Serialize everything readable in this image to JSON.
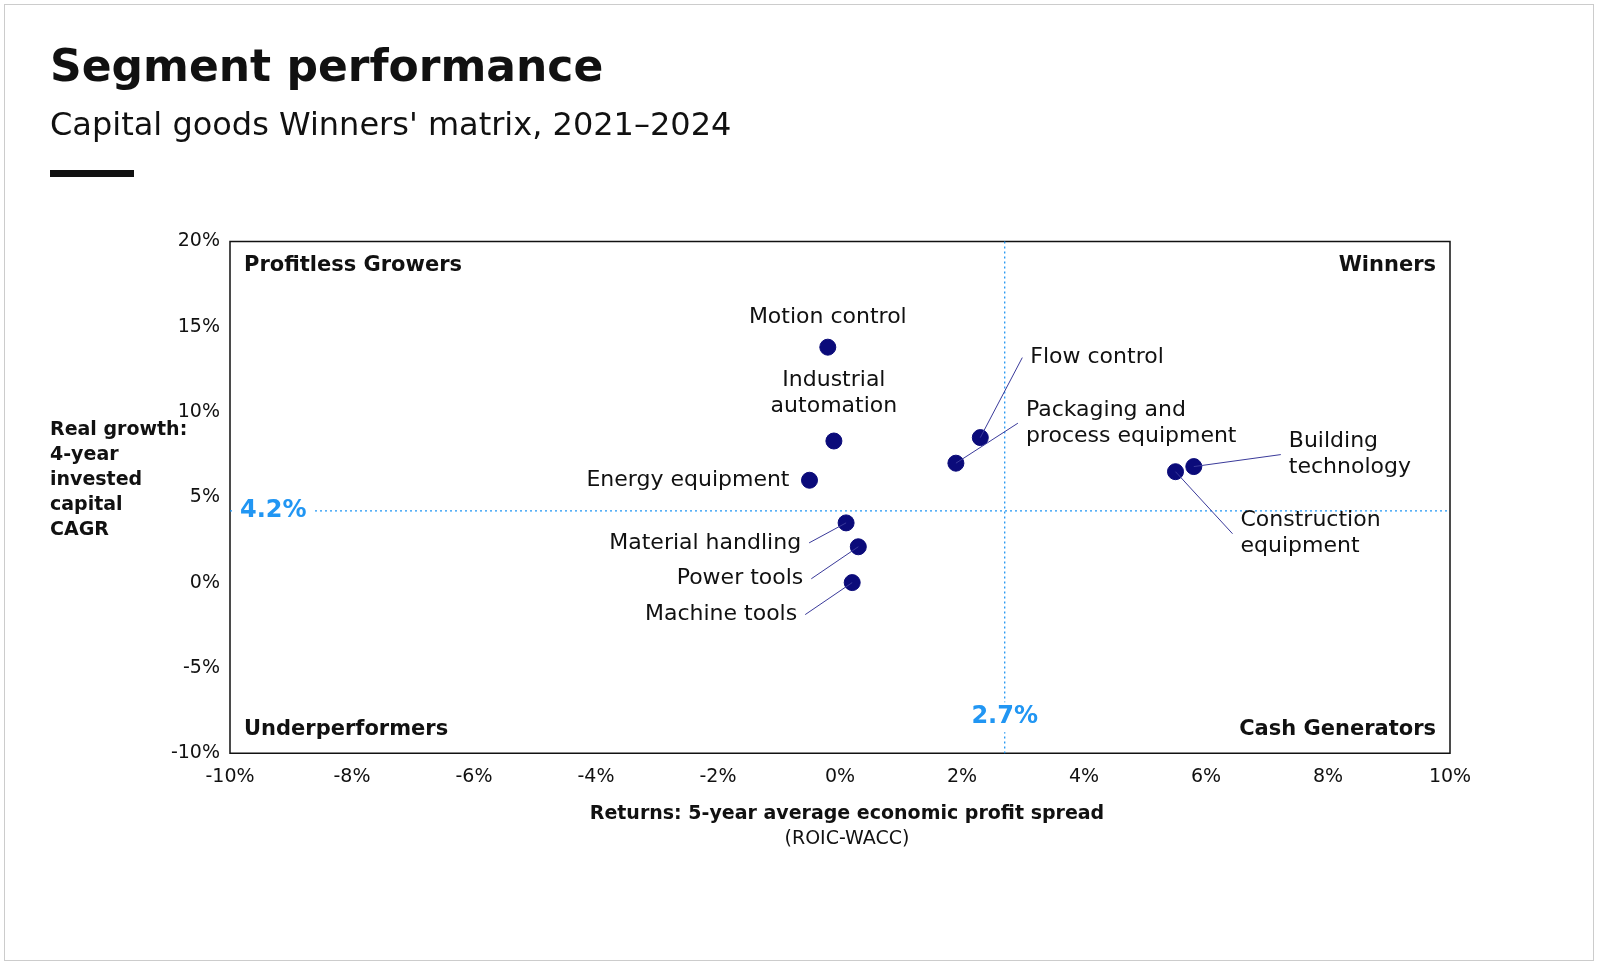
{
  "chart_data": {
    "type": "scatter",
    "title": "Segment performance",
    "subtitle": "Capital goods Winners' matrix, 2021–2024",
    "xlabel": "Returns: 5-year average economic profit spread\n(ROIC-WACC)",
    "ylabel": "Real growth:\n4-year\ninvested\ncapital\nCAGR",
    "series": [
      {
        "name": "Motion control",
        "color": "#0b0b7a",
        "x": [
          -0.2
        ],
        "values": [
          13.8
        ]
      },
      {
        "name": "Industrial\nautomation",
        "color": "#0b0b7a",
        "x": [
          -0.1
        ],
        "values": [
          8.3
        ]
      },
      {
        "name": "Energy equipment",
        "color": "#0b0b7a",
        "x": [
          -0.5
        ],
        "values": [
          6.0
        ]
      },
      {
        "name": "Material handling",
        "color": "#0b0b7a",
        "x": [
          0.1
        ],
        "values": [
          3.5
        ]
      },
      {
        "name": "Power tools",
        "color": "#0b0b7a",
        "x": [
          0.3
        ],
        "values": [
          2.1
        ]
      },
      {
        "name": "Machine tools",
        "color": "#0b0b7a",
        "x": [
          0.2
        ],
        "values": [
          0.0
        ]
      },
      {
        "name": "Flow control",
        "color": "#0b0b7a",
        "x": [
          2.3
        ],
        "values": [
          8.5
        ]
      },
      {
        "name": "Packaging and\nprocess equipment",
        "color": "#0b0b7a",
        "x": [
          1.9
        ],
        "values": [
          7.0
        ]
      },
      {
        "name": "Building\ntechnology",
        "color": "#0b0b7a",
        "x": [
          5.8
        ],
        "values": [
          6.8
        ]
      },
      {
        "name": "Construction\nequipment",
        "color": "#0b0b7a",
        "x": [
          5.5
        ],
        "values": [
          6.5
        ]
      }
    ],
    "marker": "circle",
    "legend": false,
    "grid": false,
    "xlim": [
      -10,
      10
    ],
    "xticks": [
      {
        "value": -10,
        "label": "-10%"
      },
      {
        "value": -8,
        "label": "-8%"
      },
      {
        "value": -6,
        "label": "-6%"
      },
      {
        "value": -4,
        "label": "-4%"
      },
      {
        "value": -2,
        "label": "-2%"
      },
      {
        "value": 0,
        "label": "0%"
      },
      {
        "value": 2,
        "label": "2%"
      },
      {
        "value": 4,
        "label": "4%"
      },
      {
        "value": 6,
        "label": "6%"
      },
      {
        "value": 8,
        "label": "8%"
      },
      {
        "value": 10,
        "label": "10%"
      }
    ],
    "ylim": [
      -10,
      20
    ],
    "yticks": [
      {
        "value": -10,
        "label": "-10%"
      },
      {
        "value": -5,
        "label": "-5%"
      },
      {
        "value": 0,
        "label": "0%"
      },
      {
        "value": 5,
        "label": "5%"
      },
      {
        "value": 10,
        "label": "10%"
      },
      {
        "value": 15,
        "label": "15%"
      },
      {
        "value": 20,
        "label": "20%"
      }
    ],
    "ref_lines": [
      {
        "axis": "y",
        "value": 4.2,
        "label": "4.2%",
        "color": "#2196f3",
        "line_style": "dotted"
      },
      {
        "axis": "x",
        "value": 2.7,
        "label": "2.7%",
        "color": "#2196f3",
        "line_style": "dotted"
      }
    ],
    "annotations": [
      "Profitless Growers",
      "Winners",
      "Underperformers",
      "Cash Generators"
    ]
  }
}
